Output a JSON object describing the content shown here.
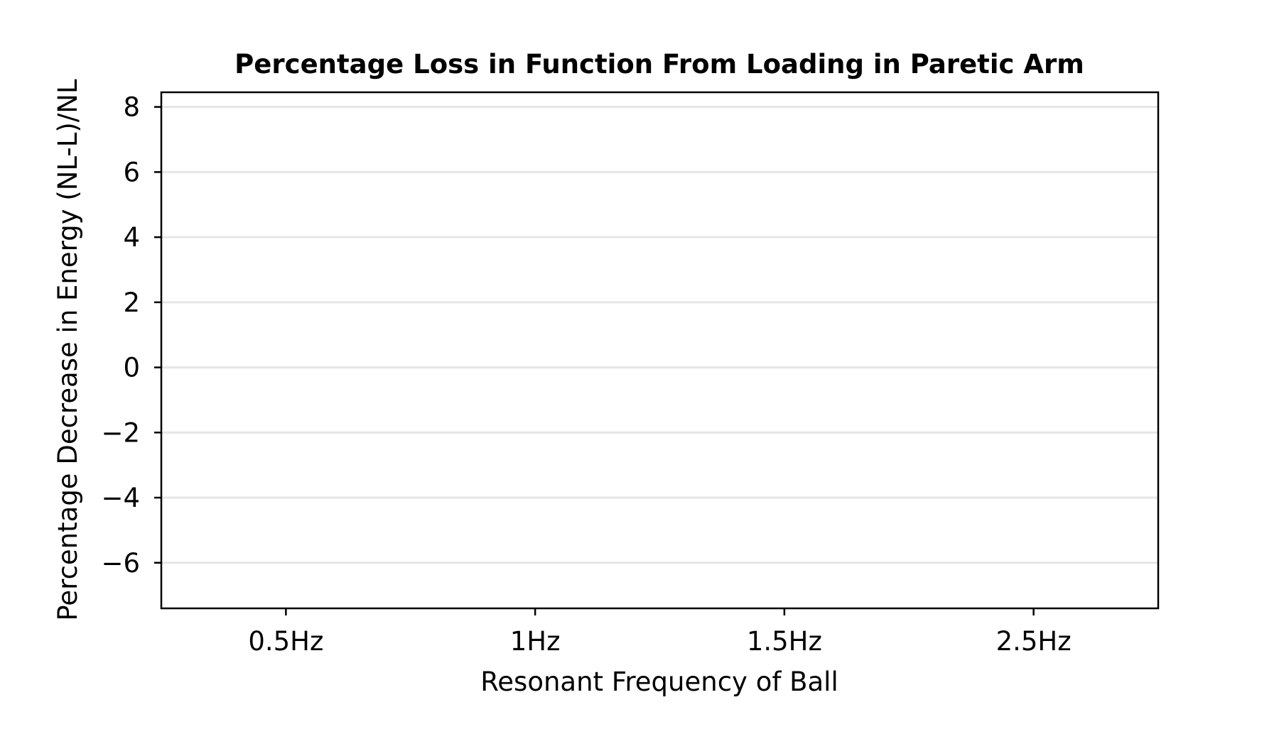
{
  "chart_data": {
    "type": "bar",
    "title": "Percentage Loss in Function From Loading in Paretic Arm",
    "xlabel": "Resonant Frequency of Ball",
    "ylabel": "Percentage Decrease in Energy (NL-L)/NL",
    "categories": [
      "0.5Hz",
      "1Hz",
      "1.5Hz",
      "2.5Hz"
    ],
    "series": [],
    "ylim": [
      -7.4,
      8.45
    ],
    "yticks": [
      8,
      6,
      4,
      2,
      0,
      -2,
      -4,
      -6
    ],
    "ytick_labels": [
      "8",
      "6",
      "4",
      "2",
      "0",
      "−2",
      "−4",
      "−6"
    ],
    "grid": "horizontal",
    "grid_color": "#e6e6e6"
  }
}
